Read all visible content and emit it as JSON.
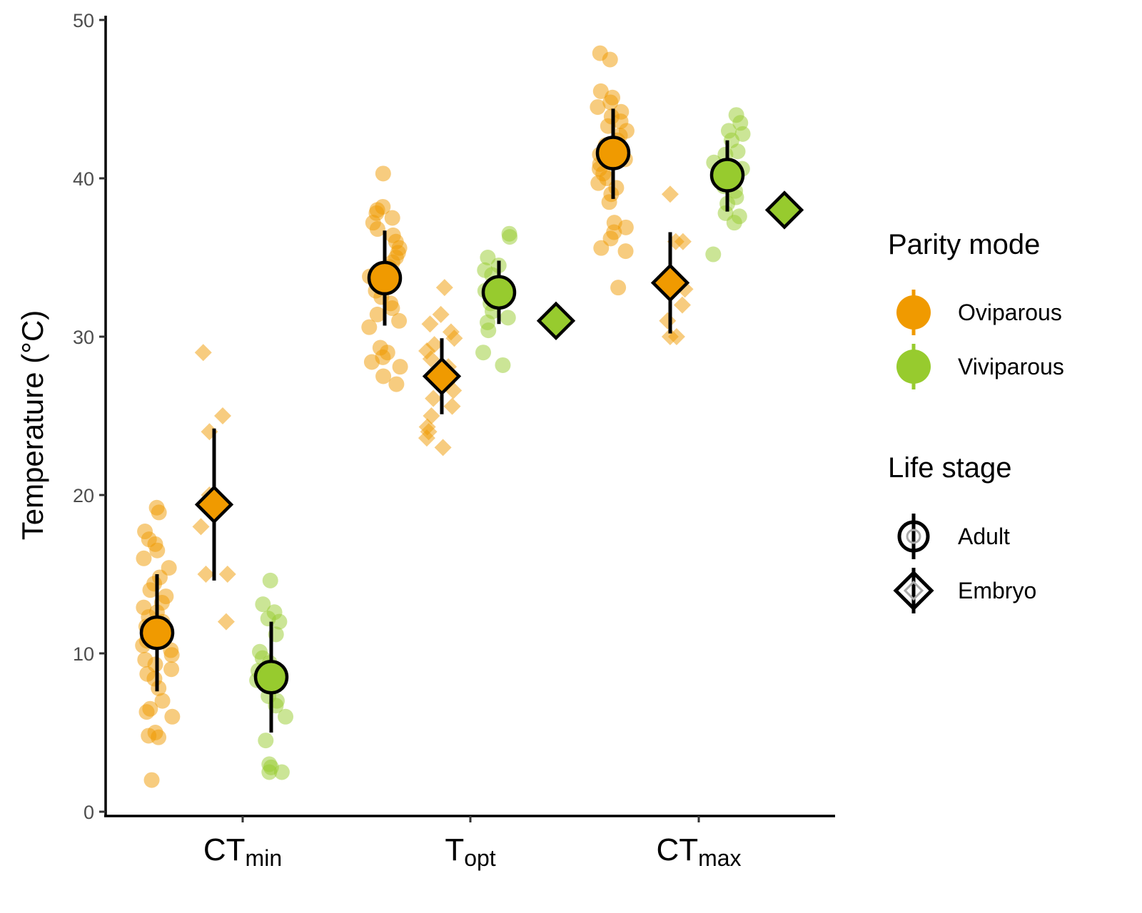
{
  "chart_data": {
    "type": "scatter",
    "title": "",
    "xlabel": "",
    "ylabel": "Temperature (°C)",
    "ylim": [
      0,
      50
    ],
    "y_ticks": [
      0,
      10,
      20,
      30,
      40,
      50
    ],
    "grid": false,
    "legend_placement": "right",
    "categories": [
      {
        "main": "CT",
        "sub": "min"
      },
      {
        "main": "T",
        "sub": "opt"
      },
      {
        "main": "CT",
        "sub": "max"
      }
    ],
    "legends": [
      {
        "title": "Parity mode",
        "entries": [
          {
            "label": "Oviparous",
            "color": "#f09a00"
          },
          {
            "label": "Viviparous",
            "color": "#97cb2e"
          }
        ]
      },
      {
        "title": "Life stage",
        "entries": [
          {
            "label": "Adult",
            "shape": "circle"
          },
          {
            "label": "Embryo",
            "shape": "diamond"
          }
        ]
      }
    ],
    "colors": {
      "Oviparous": "#f09a00",
      "Viviparous": "#97cb2e"
    },
    "summary": [
      {
        "category": "CTmin",
        "parity": "Oviparous",
        "stage": "Adult",
        "mean": 11.3,
        "low": 7.6,
        "high": 15.0
      },
      {
        "category": "CTmin",
        "parity": "Oviparous",
        "stage": "Embryo",
        "mean": 19.4,
        "low": 14.6,
        "high": 24.2
      },
      {
        "category": "CTmin",
        "parity": "Viviparous",
        "stage": "Adult",
        "mean": 8.5,
        "low": 5.0,
        "high": 12.0
      },
      {
        "category": "Topt",
        "parity": "Oviparous",
        "stage": "Adult",
        "mean": 33.7,
        "low": 30.7,
        "high": 36.7
      },
      {
        "category": "Topt",
        "parity": "Oviparous",
        "stage": "Embryo",
        "mean": 27.5,
        "low": 25.1,
        "high": 29.9
      },
      {
        "category": "Topt",
        "parity": "Viviparous",
        "stage": "Adult",
        "mean": 32.8,
        "low": 30.8,
        "high": 34.8
      },
      {
        "category": "Topt",
        "parity": "Viviparous",
        "stage": "Embryo",
        "mean": 31.0,
        "low": 31.0,
        "high": 31.0
      },
      {
        "category": "CTmax",
        "parity": "Oviparous",
        "stage": "Adult",
        "mean": 41.6,
        "low": 38.7,
        "high": 44.4
      },
      {
        "category": "CTmax",
        "parity": "Oviparous",
        "stage": "Embryo",
        "mean": 33.4,
        "low": 30.2,
        "high": 36.6
      },
      {
        "category": "CTmax",
        "parity": "Viviparous",
        "stage": "Adult",
        "mean": 40.2,
        "low": 37.9,
        "high": 42.4
      },
      {
        "category": "CTmax",
        "parity": "Viviparous",
        "stage": "Embryo",
        "mean": 38.0,
        "low": 38.0,
        "high": 38.0
      }
    ],
    "raw_points": [
      {
        "category": "CTmin",
        "parity": "Oviparous",
        "stage": "Adult",
        "values": [
          19.2,
          18.9,
          17.7,
          17.2,
          16.9,
          16.5,
          16.0,
          15.4,
          14.8,
          14.4,
          14.0,
          13.6,
          13.2,
          12.9,
          12.6,
          12.3,
          12.0,
          11.7,
          11.4,
          11.1,
          10.8,
          10.5,
          10.2,
          9.9,
          9.6,
          9.3,
          9.0,
          8.7,
          8.4,
          7.8,
          7.0,
          6.5,
          6.3,
          6.0,
          5.0,
          4.8,
          4.7,
          2.0
        ]
      },
      {
        "category": "CTmin",
        "parity": "Oviparous",
        "stage": "Embryo",
        "values": [
          29.0,
          25.0,
          24.0,
          20.0,
          18.0,
          15.0,
          15.0,
          12.0
        ]
      },
      {
        "category": "CTmin",
        "parity": "Viviparous",
        "stage": "Adult",
        "values": [
          14.6,
          13.1,
          12.6,
          12.2,
          12.0,
          11.2,
          10.1,
          9.7,
          9.4,
          8.9,
          8.3,
          7.3,
          7.0,
          6.7,
          6.0,
          4.5,
          3.0,
          2.8,
          2.5,
          2.5
        ]
      },
      {
        "category": "Topt",
        "parity": "Oviparous",
        "stage": "Adult",
        "values": [
          40.3,
          38.2,
          38.0,
          37.8,
          37.5,
          37.2,
          36.8,
          36.4,
          36.0,
          35.6,
          35.3,
          35.0,
          34.7,
          34.4,
          34.1,
          33.8,
          33.5,
          33.2,
          32.9,
          32.5,
          32.1,
          31.8,
          31.4,
          31.0,
          30.6,
          29.3,
          29.0,
          28.7,
          28.4,
          28.1,
          27.5,
          27.0
        ]
      },
      {
        "category": "Topt",
        "parity": "Oviparous",
        "stage": "Embryo",
        "values": [
          33.1,
          31.4,
          30.8,
          30.3,
          29.9,
          29.5,
          29.1,
          28.6,
          28.1,
          27.6,
          27.1,
          26.6,
          26.1,
          25.6,
          25.0,
          24.3,
          24.0,
          23.6,
          23.0
        ]
      },
      {
        "category": "Topt",
        "parity": "Viviparous",
        "stage": "Adult",
        "values": [
          36.5,
          36.3,
          35.0,
          34.5,
          34.2,
          33.9,
          33.3,
          32.9,
          32.5,
          32.1,
          31.6,
          31.2,
          30.9,
          30.4,
          29.0,
          28.2
        ]
      },
      {
        "category": "CTmax",
        "parity": "Oviparous",
        "stage": "Adult",
        "values": [
          47.9,
          47.5,
          45.5,
          45.1,
          44.8,
          44.5,
          44.2,
          43.9,
          43.6,
          43.3,
          43.0,
          42.7,
          42.4,
          42.1,
          41.8,
          41.5,
          41.2,
          40.9,
          40.6,
          40.3,
          40.0,
          39.7,
          39.4,
          39.0,
          38.5,
          37.2,
          36.9,
          36.6,
          36.2,
          35.6,
          35.4,
          33.1
        ]
      },
      {
        "category": "CTmax",
        "parity": "Oviparous",
        "stage": "Embryo",
        "values": [
          39.0,
          36.0,
          36.0,
          34.0,
          33.0,
          32.0,
          31.0,
          30.0,
          30.0
        ]
      },
      {
        "category": "CTmax",
        "parity": "Viviparous",
        "stage": "Adult",
        "values": [
          44.0,
          43.5,
          43.0,
          42.8,
          42.4,
          41.7,
          41.5,
          41.0,
          40.6,
          40.2,
          39.8,
          39.5,
          39.2,
          38.8,
          38.4,
          37.8,
          37.6,
          37.2,
          35.2
        ]
      }
    ]
  }
}
